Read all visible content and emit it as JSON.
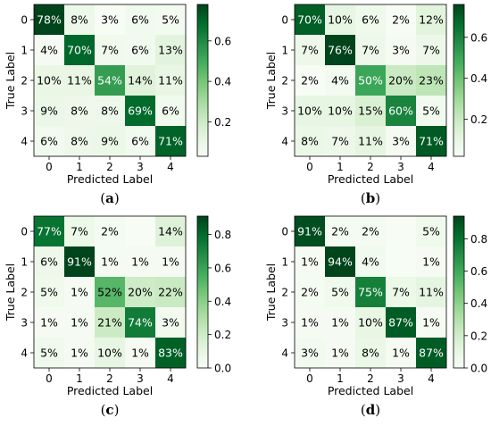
{
  "chart_data": [
    {
      "type": "heatmap",
      "panel_label": "a",
      "xlabel": "Predicted Label",
      "ylabel": "True Label",
      "categories": [
        "0",
        "1",
        "2",
        "3",
        "4"
      ],
      "values": [
        [
          0.78,
          0.08,
          0.03,
          0.06,
          0.05
        ],
        [
          0.04,
          0.7,
          0.07,
          0.06,
          0.13
        ],
        [
          0.1,
          0.11,
          0.54,
          0.14,
          0.11
        ],
        [
          0.09,
          0.08,
          0.08,
          0.69,
          0.06
        ],
        [
          0.06,
          0.08,
          0.09,
          0.06,
          0.71
        ]
      ],
      "cell_labels": [
        [
          "78%",
          "8%",
          "3%",
          "6%",
          "5%"
        ],
        [
          "4%",
          "70%",
          "7%",
          "6%",
          "13%"
        ],
        [
          "10%",
          "11%",
          "54%",
          "14%",
          "11%"
        ],
        [
          "9%",
          "8%",
          "8%",
          "69%",
          "6%"
        ],
        [
          "6%",
          "8%",
          "9%",
          "6%",
          "71%"
        ]
      ],
      "colorbar": {
        "range": [
          0.03,
          0.78
        ],
        "ticks": [
          "0.2",
          "0.4",
          "0.6"
        ],
        "tick_values": [
          0.2,
          0.4,
          0.6
        ]
      },
      "colormap": "Greens"
    },
    {
      "type": "heatmap",
      "panel_label": "b",
      "xlabel": "Predicted Label",
      "ylabel": "True Label",
      "categories": [
        "0",
        "1",
        "2",
        "3",
        "4"
      ],
      "values": [
        [
          0.7,
          0.1,
          0.06,
          0.02,
          0.12
        ],
        [
          0.07,
          0.76,
          0.07,
          0.03,
          0.07
        ],
        [
          0.02,
          0.04,
          0.5,
          0.2,
          0.23
        ],
        [
          0.1,
          0.1,
          0.15,
          0.6,
          0.05
        ],
        [
          0.08,
          0.07,
          0.11,
          0.03,
          0.71
        ]
      ],
      "cell_labels": [
        [
          "70%",
          "10%",
          "6%",
          "2%",
          "12%"
        ],
        [
          "7%",
          "76%",
          "7%",
          "3%",
          "7%"
        ],
        [
          "2%",
          "4%",
          "50%",
          "20%",
          "23%"
        ],
        [
          "10%",
          "10%",
          "15%",
          "60%",
          "5%"
        ],
        [
          "8%",
          "7%",
          "11%",
          "3%",
          "71%"
        ]
      ],
      "colorbar": {
        "range": [
          0.02,
          0.76
        ],
        "ticks": [
          "0.2",
          "0.4",
          "0.6"
        ],
        "tick_values": [
          0.2,
          0.4,
          0.6
        ]
      },
      "colormap": "Greens"
    },
    {
      "type": "heatmap",
      "panel_label": "c",
      "xlabel": "Predicted Label",
      "ylabel": "True Label",
      "categories": [
        "0",
        "1",
        "2",
        "3",
        "4"
      ],
      "values": [
        [
          0.77,
          0.07,
          0.02,
          0.0,
          0.14
        ],
        [
          0.06,
          0.91,
          0.01,
          0.01,
          0.01
        ],
        [
          0.05,
          0.01,
          0.52,
          0.2,
          0.22
        ],
        [
          0.01,
          0.01,
          0.21,
          0.74,
          0.03
        ],
        [
          0.05,
          0.01,
          0.1,
          0.01,
          0.83
        ]
      ],
      "cell_labels": [
        [
          "77%",
          "7%",
          "2%",
          "",
          "14%"
        ],
        [
          "6%",
          "91%",
          "1%",
          "1%",
          "1%"
        ],
        [
          "5%",
          "1%",
          "52%",
          "20%",
          "22%"
        ],
        [
          "1%",
          "1%",
          "21%",
          "74%",
          "3%"
        ],
        [
          "5%",
          "1%",
          "10%",
          "1%",
          "83%"
        ]
      ],
      "colorbar": {
        "range": [
          0.0,
          0.91
        ],
        "ticks": [
          "0.0",
          "0.2",
          "0.4",
          "0.6",
          "0.8"
        ],
        "tick_values": [
          0.0,
          0.2,
          0.4,
          0.6,
          0.8
        ]
      },
      "colormap": "Greens"
    },
    {
      "type": "heatmap",
      "panel_label": "d",
      "xlabel": "Predicted Label",
      "ylabel": "True Label",
      "categories": [
        "0",
        "1",
        "2",
        "3",
        "4"
      ],
      "values": [
        [
          0.91,
          0.02,
          0.02,
          0.0,
          0.05
        ],
        [
          0.01,
          0.94,
          0.04,
          0.0,
          0.01
        ],
        [
          0.02,
          0.05,
          0.75,
          0.07,
          0.11
        ],
        [
          0.01,
          0.01,
          0.1,
          0.87,
          0.01
        ],
        [
          0.03,
          0.01,
          0.08,
          0.01,
          0.87
        ]
      ],
      "cell_labels": [
        [
          "91%",
          "2%",
          "2%",
          "",
          "5%"
        ],
        [
          "1%",
          "94%",
          "4%",
          "",
          "1%"
        ],
        [
          "2%",
          "5%",
          "75%",
          "7%",
          "11%"
        ],
        [
          "1%",
          "1%",
          "10%",
          "87%",
          "1%"
        ],
        [
          "3%",
          "1%",
          "8%",
          "1%",
          "87%"
        ]
      ],
      "colorbar": {
        "range": [
          0.0,
          0.94
        ],
        "ticks": [
          "0.0",
          "0.2",
          "0.4",
          "0.6",
          "0.8"
        ],
        "tick_values": [
          0.0,
          0.2,
          0.4,
          0.6,
          0.8
        ]
      },
      "colormap": "Greens"
    }
  ]
}
